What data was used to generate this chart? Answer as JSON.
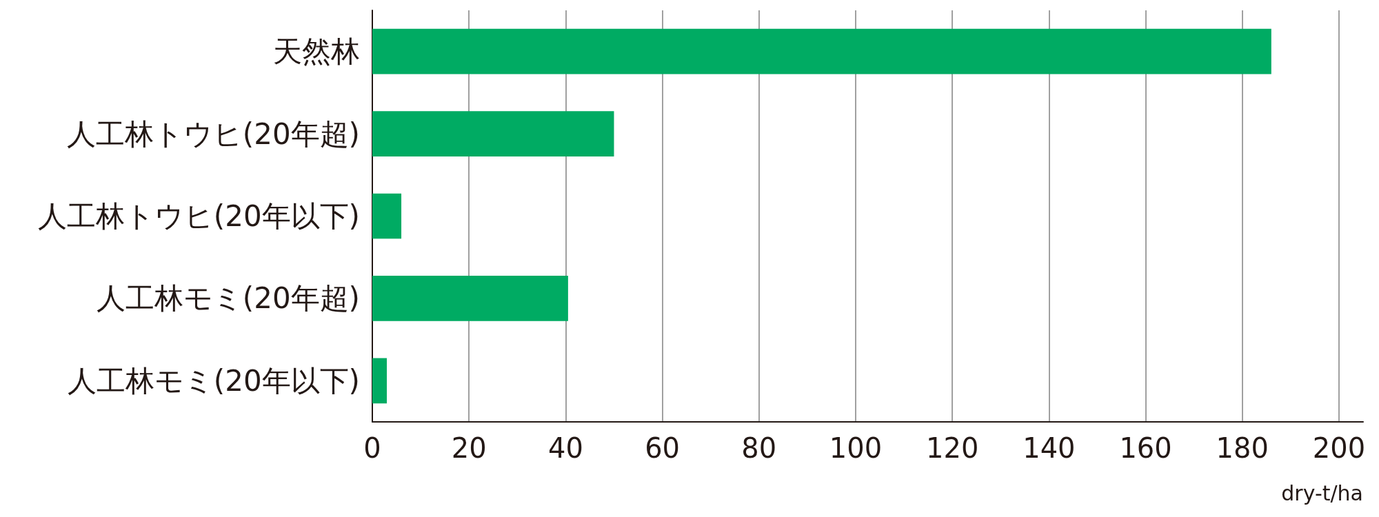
{
  "chart_data": {
    "type": "bar",
    "orientation": "horizontal",
    "xlabel": "dry-t/ha",
    "categories": [
      "天然林",
      "人工林トウヒ(20年超)",
      "人工林トウヒ(20年以下)",
      "人工林モミ(20年超)",
      "人工林モミ(20年以下)"
    ],
    "values": [
      186,
      50,
      6,
      40.5,
      3
    ],
    "color": "#00ab63",
    "xlim": [
      0,
      205
    ],
    "xticks": [
      0,
      20,
      40,
      60,
      80,
      100,
      120,
      140,
      160,
      180,
      200
    ],
    "grid": "x"
  }
}
